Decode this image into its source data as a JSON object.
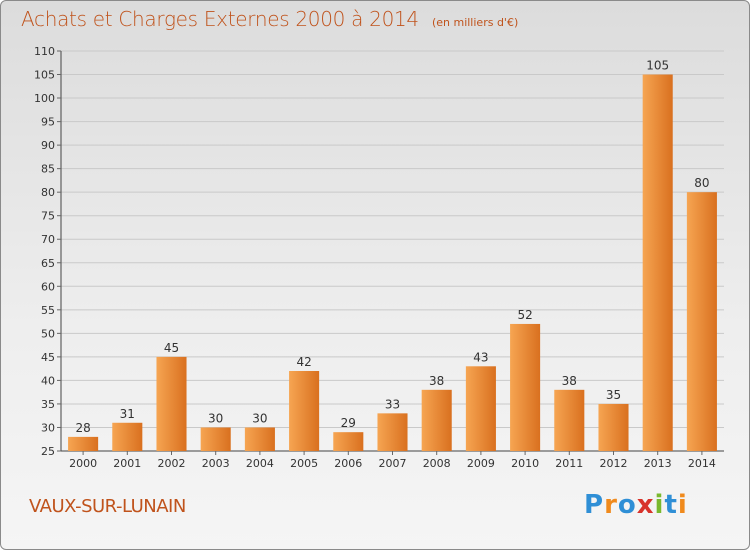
{
  "header": {
    "title": "Achats et Charges Externes 2000 à 2014",
    "unit": "(en milliers d'€)"
  },
  "footer": {
    "commune": "VAUX-SUR-LUNAIN",
    "logo_text": "Proxiti",
    "logo_colors": [
      "#2f8fd6",
      "#f08a1c",
      "#2f8fd6",
      "#d8332b",
      "#7ab92e",
      "#2f8fd6",
      "#f08a1c"
    ]
  },
  "colors": {
    "accent": "#c0531c",
    "bar_light": "#f6a552",
    "bar_dark": "#d9701f"
  },
  "chart_data": {
    "type": "bar",
    "title": "Achats et Charges Externes 2000 à 2014",
    "subtitle": "(en milliers d'€)",
    "categories": [
      "2000",
      "2001",
      "2002",
      "2003",
      "2004",
      "2005",
      "2006",
      "2007",
      "2008",
      "2009",
      "2010",
      "2011",
      "2012",
      "2013",
      "2014"
    ],
    "values": [
      28,
      31,
      45,
      30,
      30,
      42,
      29,
      33,
      38,
      43,
      52,
      38,
      35,
      105,
      80
    ],
    "ylim": [
      25,
      110
    ],
    "yticks": [
      25,
      30,
      35,
      40,
      45,
      50,
      55,
      60,
      65,
      70,
      75,
      80,
      85,
      90,
      95,
      100,
      105,
      110
    ],
    "grid": true,
    "data_labels": true
  }
}
